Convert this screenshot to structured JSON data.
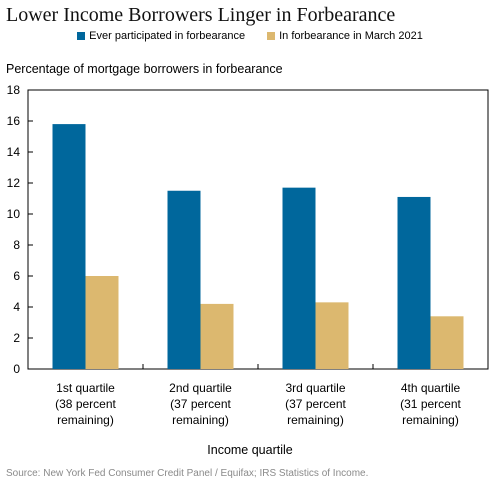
{
  "chart_data": {
    "type": "bar",
    "title": "Lower Income Borrowers Linger in Forbearance",
    "ylabel": "Percentage of mortgage borrowers in forbearance",
    "xlabel": "Income quartile",
    "categories": [
      [
        "1st quartile",
        "(38 percent",
        "remaining)"
      ],
      [
        "2nd quartile",
        "(37 percent",
        "remaining)"
      ],
      [
        "3rd quartile",
        "(37 percent",
        "remaining)"
      ],
      [
        "4th quartile",
        "(31 percent",
        "remaining)"
      ]
    ],
    "series": [
      {
        "name": "Ever participated in forbearance",
        "color": "#00679c",
        "values": [
          15.8,
          11.5,
          11.7,
          11.1
        ]
      },
      {
        "name": "In forbearance in March 2021",
        "color": "#dcb86f",
        "values": [
          6.0,
          4.2,
          4.3,
          3.4
        ]
      }
    ],
    "ylim": [
      0,
      18
    ],
    "yticks": [
      0,
      2,
      4,
      6,
      8,
      10,
      12,
      14,
      16,
      18
    ],
    "legend": "top-center",
    "grid": false
  },
  "source": "Source: New York Fed Consumer Credit Panel / Equifax; IRS Statistics of Income."
}
